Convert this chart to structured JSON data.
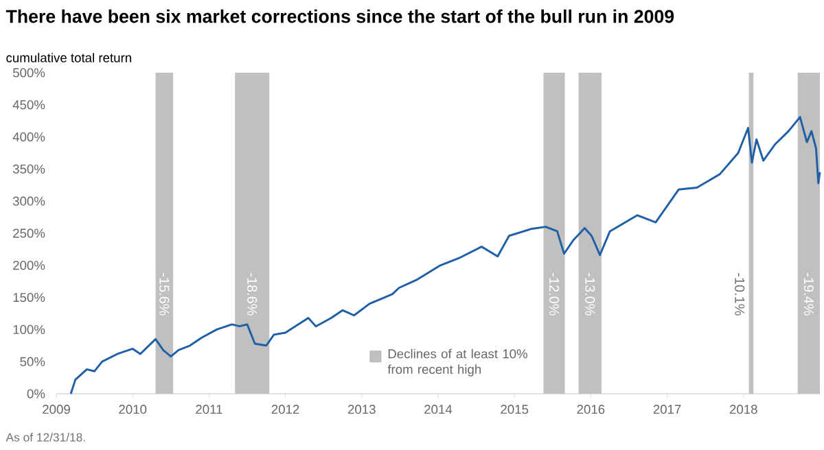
{
  "chart_data": {
    "type": "line",
    "title": "There have been six market corrections since the start of the bull run in 2009",
    "ylabel": "cumulative total return",
    "legend_title": "Declines of at least 10% from recent high",
    "annotations": [
      "As of 12/31/18."
    ],
    "x": [
      2009.19,
      2009.25,
      2009.4,
      2009.5,
      2009.6,
      2009.8,
      2010.0,
      2010.1,
      2010.3,
      2010.4,
      2010.5,
      2010.6,
      2010.75,
      2010.9,
      2011.1,
      2011.3,
      2011.4,
      2011.5,
      2011.6,
      2011.75,
      2011.85,
      2012.0,
      2012.3,
      2012.4,
      2012.6,
      2012.75,
      2012.9,
      2013.1,
      2013.4,
      2013.49,
      2013.73,
      2014.03,
      2014.27,
      2014.57,
      2014.78,
      2014.93,
      2015.23,
      2015.41,
      2015.56,
      2015.65,
      2015.77,
      2015.92,
      2016.01,
      2016.12,
      2016.25,
      2016.61,
      2016.85,
      2017.15,
      2017.39,
      2017.69,
      2017.93,
      2018.06,
      2018.11,
      2018.17,
      2018.26,
      2018.41,
      2018.59,
      2018.74,
      2018.83,
      2018.89,
      2018.95,
      2018.98,
      2019.0
    ],
    "series": [
      {
        "color": "#1f5fa5",
        "values": [
          0,
          22,
          38,
          35,
          50,
          62,
          70,
          62,
          85,
          68,
          58,
          68,
          75,
          87,
          100,
          108,
          105,
          108,
          78,
          75,
          92,
          95,
          118,
          105,
          118,
          130,
          122,
          140,
          155,
          165,
          178,
          200,
          211,
          229,
          214,
          246,
          257,
          260,
          253,
          218,
          239,
          258,
          246,
          216,
          253,
          278,
          267,
          318,
          321,
          342,
          375,
          414,
          360,
          396,
          363,
          388,
          409,
          431,
          392,
          409,
          382,
          328,
          345
        ]
      }
    ],
    "xlim": [
      2009,
      2019
    ],
    "ylim": [
      0,
      500
    ],
    "xticks": [
      2009,
      2010,
      2011,
      2012,
      2013,
      2014,
      2015,
      2016,
      2017,
      2018
    ],
    "yticks": [
      {
        "value": 0,
        "label": "0%"
      },
      {
        "value": 50,
        "label": "50%"
      },
      {
        "value": 100,
        "label": "100%"
      },
      {
        "value": 150,
        "label": "150%"
      },
      {
        "value": 200,
        "label": "200%"
      },
      {
        "value": 250,
        "label": "250%"
      },
      {
        "value": 300,
        "label": "300%"
      },
      {
        "value": 350,
        "label": "350%"
      },
      {
        "value": 400,
        "label": "400%"
      },
      {
        "value": 450,
        "label": "450%"
      },
      {
        "value": 500,
        "label": "500%"
      }
    ],
    "bands": [
      {
        "axis": "x",
        "from": 2010.3,
        "to": 2010.53,
        "label": "-15.6%",
        "color": "#c0c0c0"
      },
      {
        "axis": "x",
        "from": 2011.34,
        "to": 2011.79,
        "label": "-18.6%",
        "color": "#c0c0c0"
      },
      {
        "axis": "x",
        "from": 2015.38,
        "to": 2015.66,
        "label": "-12.0%",
        "color": "#c0c0c0"
      },
      {
        "axis": "x",
        "from": 2015.84,
        "to": 2016.14,
        "label": "-13.0%",
        "color": "#c0c0c0"
      },
      {
        "axis": "x",
        "from": 2018.07,
        "to": 2018.13,
        "label": "-10.1%",
        "color": "#c0c0c0"
      },
      {
        "axis": "x",
        "from": 2018.71,
        "to": 2019.0,
        "label": "-19.4%",
        "color": "#c0c0c0"
      }
    ],
    "legend": "bottom"
  }
}
